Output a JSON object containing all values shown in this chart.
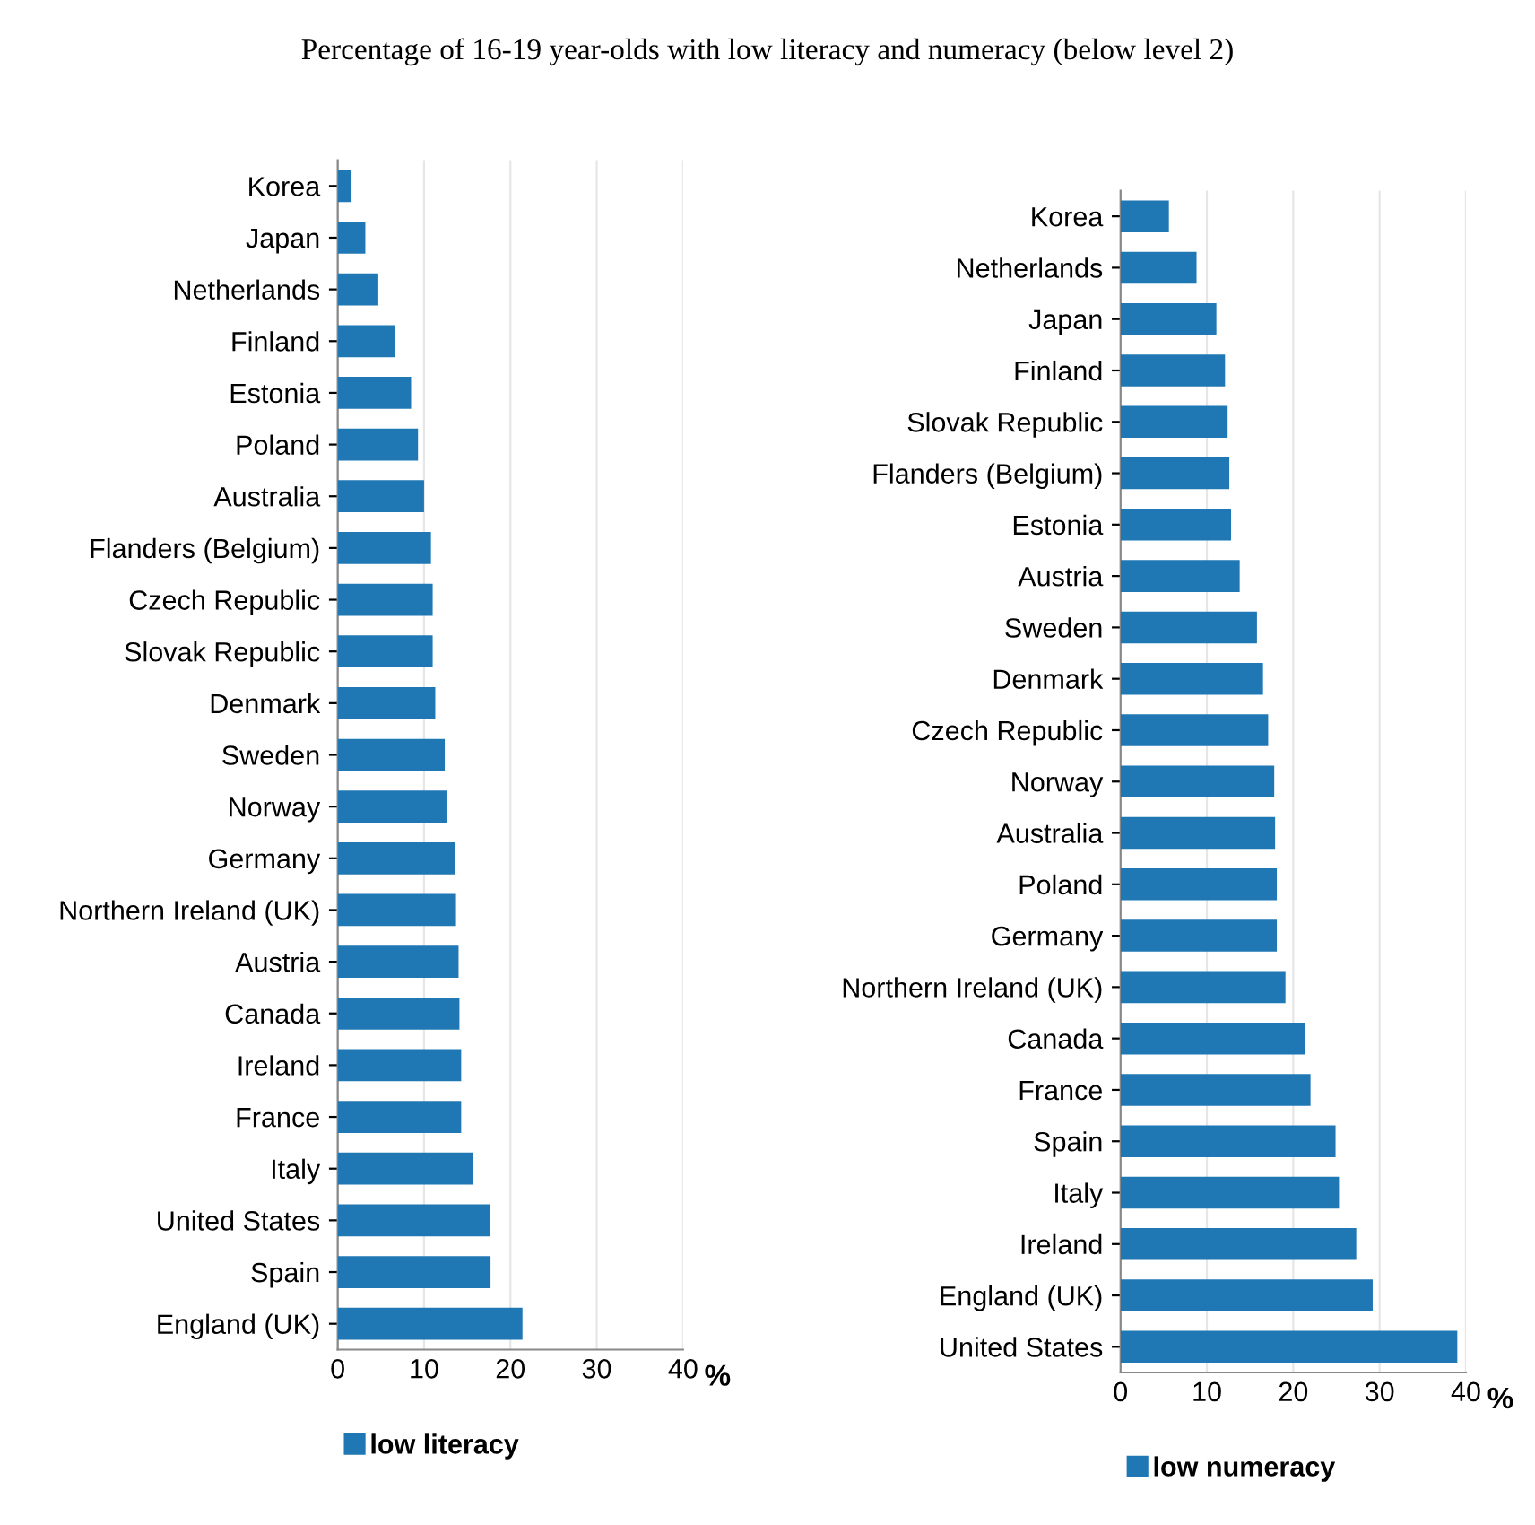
{
  "chart_data": [
    {
      "type": "bar",
      "orientation": "horizontal",
      "title": "Percentage of 16-19 year-olds with low literacy and numeracy (below level 2)",
      "xlabel": "%",
      "categories": [
        "Korea",
        "Japan",
        "Netherlands",
        "Finland",
        "Estonia",
        "Poland",
        "Australia",
        "Flanders (Belgium)",
        "Czech Republic",
        "Slovak Republic",
        "Denmark",
        "Sweden",
        "Norway",
        "Germany",
        "Northern Ireland (UK)",
        "Austria",
        "Canada",
        "Ireland",
        "France",
        "Italy",
        "United States",
        "Spain",
        "England (UK)"
      ],
      "series": [
        {
          "name": "low literacy",
          "color": "#1f77b4",
          "values": [
            1.6,
            3.2,
            4.7,
            6.6,
            8.5,
            9.3,
            10.0,
            10.8,
            11.0,
            11.0,
            11.3,
            12.4,
            12.6,
            13.6,
            13.7,
            14.0,
            14.1,
            14.3,
            14.3,
            15.7,
            17.6,
            17.7,
            21.4
          ]
        }
      ],
      "xlim": [
        0,
        40
      ],
      "xticks": [
        0,
        10,
        20,
        30,
        40
      ],
      "grid": "x",
      "legend": "bottom left"
    },
    {
      "type": "bar",
      "orientation": "horizontal",
      "xlabel": "%",
      "categories": [
        "Korea",
        "Netherlands",
        "Japan",
        "Finland",
        "Slovak Republic",
        "Flanders (Belgium)",
        "Estonia",
        "Austria",
        "Sweden",
        "Denmark",
        "Czech Republic",
        "Norway",
        "Australia",
        "Poland",
        "Germany",
        "Northern Ireland (UK)",
        "Canada",
        "France",
        "Spain",
        "Italy",
        "Ireland",
        "England (UK)",
        "United States"
      ],
      "series": [
        {
          "name": "low numeracy",
          "color": "#1f77b4",
          "values": [
            5.6,
            8.8,
            11.1,
            12.1,
            12.4,
            12.6,
            12.8,
            13.8,
            15.8,
            16.5,
            17.1,
            17.8,
            17.9,
            18.1,
            18.1,
            19.1,
            21.4,
            22.0,
            24.9,
            25.3,
            27.3,
            29.2,
            39.0
          ]
        }
      ],
      "xlim": [
        0,
        40
      ],
      "xticks": [
        0,
        10,
        20,
        30,
        40
      ],
      "grid": "x",
      "legend": "bottom left"
    }
  ]
}
